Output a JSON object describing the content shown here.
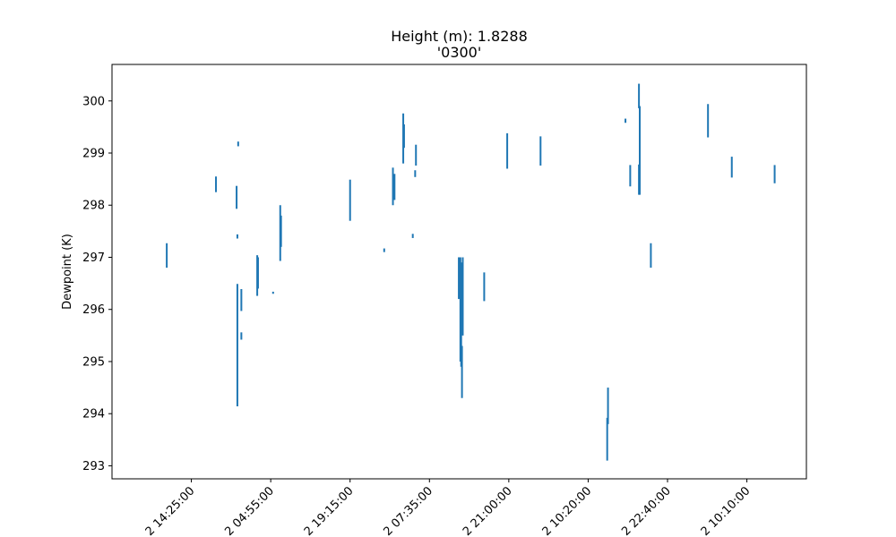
{
  "chart_data": {
    "type": "line",
    "title": "Height (m): 1.8288",
    "subtitle": "'0300'",
    "xlabel": "",
    "ylabel": "Dewpoint (K)",
    "ylim": [
      292.75,
      300.7
    ],
    "xlim": [
      -1.0,
      7.75
    ],
    "grid": false,
    "legend": "none",
    "y_ticks": [
      293,
      294,
      295,
      296,
      297,
      298,
      299,
      300
    ],
    "x_ticks": [
      0,
      1,
      2,
      3,
      4,
      5,
      6,
      7
    ],
    "x_tick_labels": [
      "2 14:25:00",
      "2 04:55:00",
      "2 19:15:00",
      "2 07:35:00",
      "2 21:00:00",
      "2 10:20:00",
      "2 22:40:00",
      "2 10:10:00"
    ],
    "series": [
      {
        "color": "#1f77b4",
        "segments": [
          {
            "x": -0.31,
            "y": [
              296.8,
              297.27
            ]
          },
          {
            "x": 0.31,
            "y": [
              298.25,
              298.55
            ]
          },
          {
            "x": 0.57,
            "y": [
              297.93,
              298.37
            ]
          },
          {
            "x": 0.59,
            "y": [
              299.13,
              299.22
            ]
          },
          {
            "x": 0.58,
            "y": [
              297.36,
              297.44
            ]
          },
          {
            "x": 0.58,
            "y": [
              294.14,
              296.49
            ]
          },
          {
            "x": 0.63,
            "y": [
              295.97,
              296.39
            ]
          },
          {
            "x": 0.63,
            "y": [
              295.42,
              295.56
            ]
          },
          {
            "x": 0.83,
            "y": [
              296.26,
              297.04
            ]
          },
          {
            "x": 0.84,
            "y": [
              296.4,
              297.0
            ]
          },
          {
            "x": 1.03,
            "y": [
              296.3,
              296.34
            ]
          },
          {
            "x": 1.12,
            "y": [
              296.93,
              298.0
            ]
          },
          {
            "x": 1.13,
            "y": [
              297.2,
              297.8
            ]
          },
          {
            "x": 2.0,
            "y": [
              297.7,
              298.49
            ]
          },
          {
            "x": 2.43,
            "y": [
              297.1,
              297.17
            ]
          },
          {
            "x": 2.54,
            "y": [
              298.0,
              298.72
            ]
          },
          {
            "x": 2.56,
            "y": [
              298.1,
              298.6
            ]
          },
          {
            "x": 2.67,
            "y": [
              298.8,
              299.76
            ]
          },
          {
            "x": 2.68,
            "y": [
              299.1,
              299.55
            ]
          },
          {
            "x": 2.79,
            "y": [
              297.37,
              297.45
            ]
          },
          {
            "x": 2.82,
            "y": [
              298.54,
              298.67
            ]
          },
          {
            "x": 2.83,
            "y": [
              298.76,
              299.16
            ]
          },
          {
            "x": 3.37,
            "y": [
              296.2,
              297.0
            ]
          },
          {
            "x": 3.39,
            "y": [
              295.0,
              297.0
            ]
          },
          {
            "x": 3.4,
            "y": [
              294.9,
              296.9
            ]
          },
          {
            "x": 3.41,
            "y": [
              294.3,
              295.3
            ]
          },
          {
            "x": 3.42,
            "y": [
              295.5,
              297.0
            ]
          },
          {
            "x": 3.69,
            "y": [
              296.16,
              296.71
            ]
          },
          {
            "x": 3.98,
            "y": [
              298.7,
              299.38
            ]
          },
          {
            "x": 4.4,
            "y": [
              298.76,
              299.32
            ]
          },
          {
            "x": 5.24,
            "y": [
              293.1,
              293.92
            ]
          },
          {
            "x": 5.25,
            "y": [
              293.8,
              294.5
            ]
          },
          {
            "x": 5.47,
            "y": [
              299.58,
              299.66
            ]
          },
          {
            "x": 5.53,
            "y": [
              298.36,
              298.77
            ]
          },
          {
            "x": 5.64,
            "y": [
              299.86,
              300.33
            ]
          },
          {
            "x": 5.64,
            "y": [
              298.2,
              298.78
            ]
          },
          {
            "x": 5.65,
            "y": [
              298.2,
              299.9
            ]
          },
          {
            "x": 5.79,
            "y": [
              296.8,
              297.27
            ]
          },
          {
            "x": 6.51,
            "y": [
              299.3,
              299.94
            ]
          },
          {
            "x": 6.81,
            "y": [
              298.53,
              298.93
            ]
          },
          {
            "x": 7.35,
            "y": [
              298.42,
              298.77
            ]
          }
        ]
      }
    ]
  }
}
